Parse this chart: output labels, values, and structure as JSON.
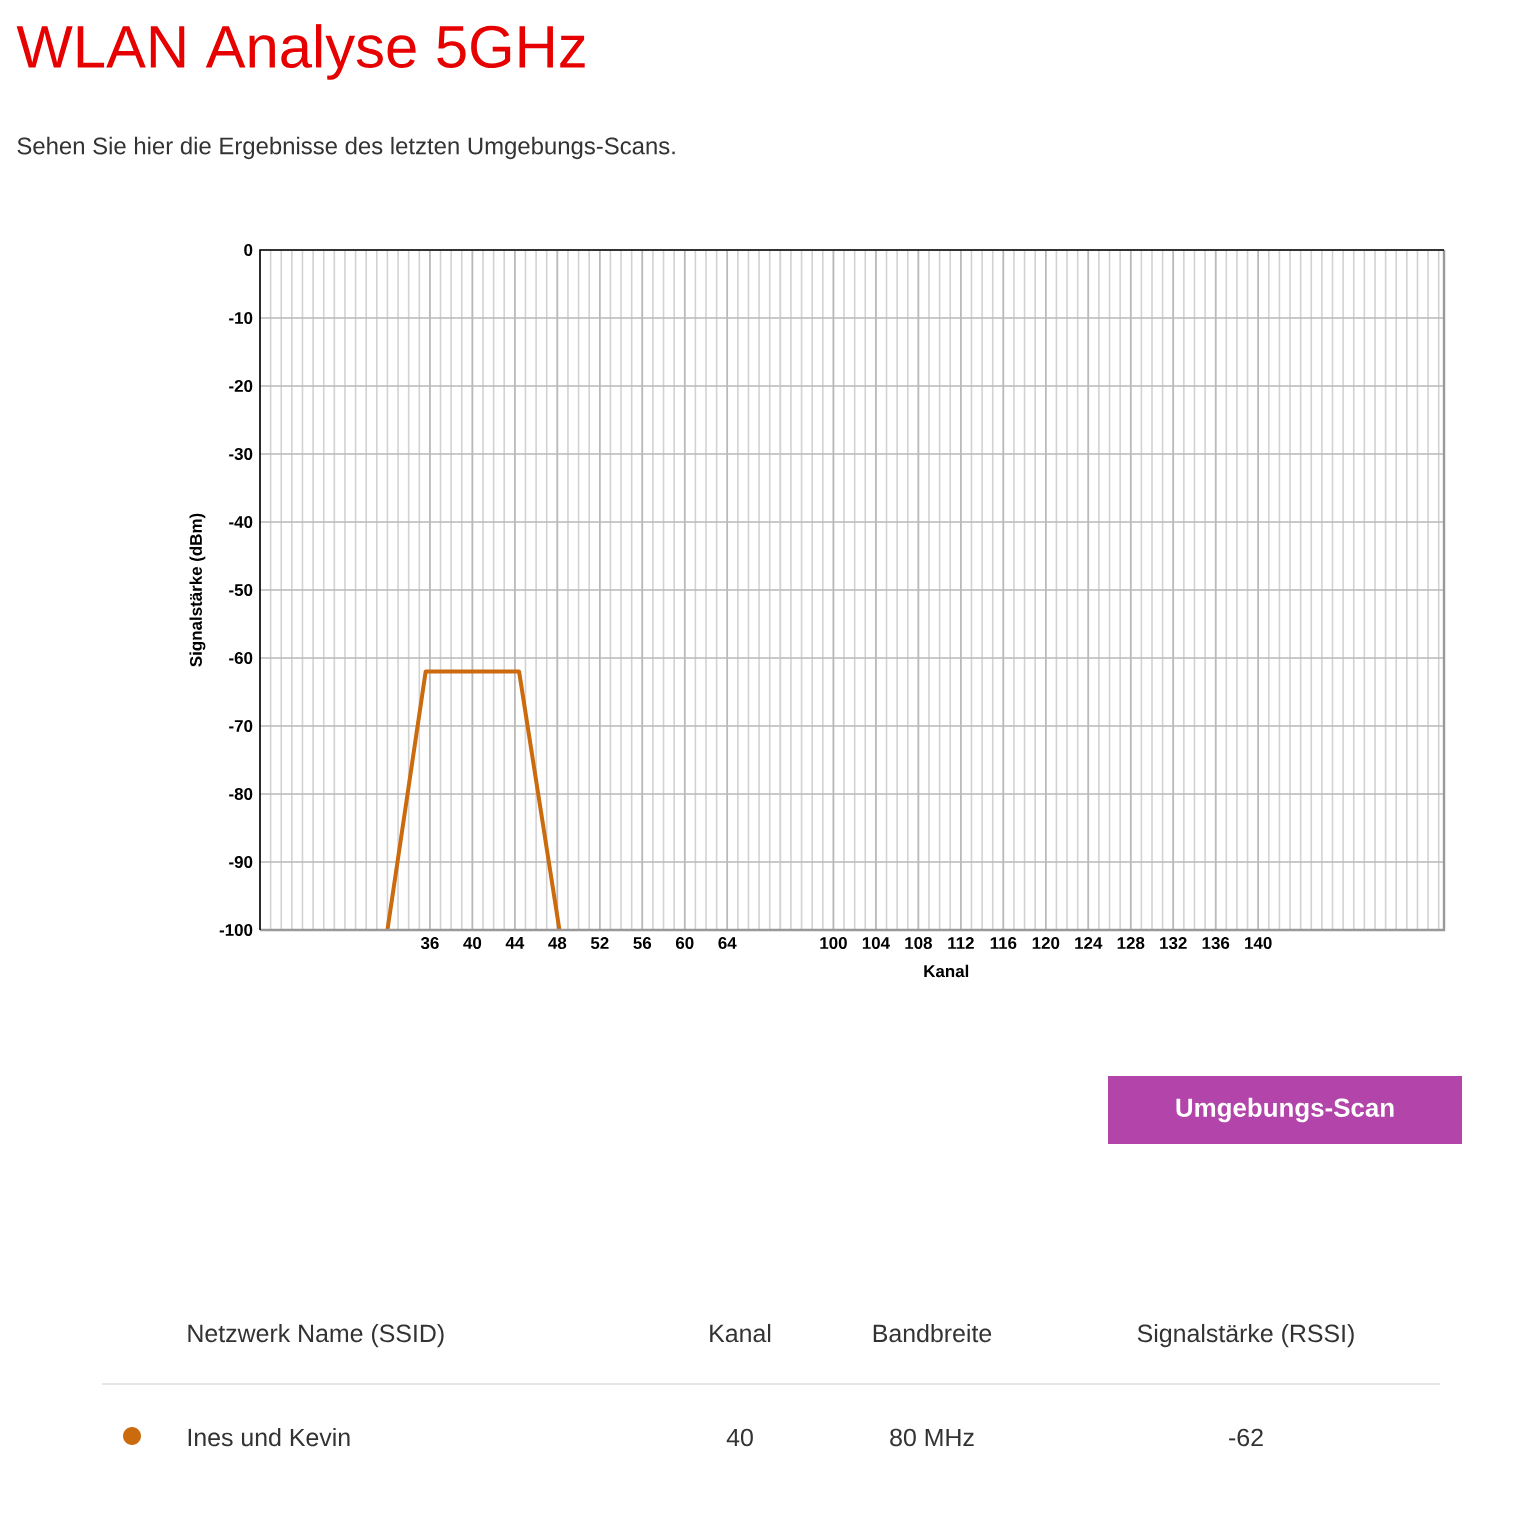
{
  "chart_data": [
    {
      "type": "line",
      "title": "WLAN Analyse 5GHz",
      "subtitle": "Sehen Sie hier die Ergebnisse des letzten Umgebungs-Scans.",
      "ylabel": "Signalstärke (dBm)",
      "series": [
        {
          "name": "Ines und Kevin",
          "color": "#cc6a0e",
          "x": [
            32,
            35.6,
            44.4,
            48.2
          ],
          "values": [
            -100,
            -62,
            -62,
            -100
          ]
        }
      ],
      "xlim": [
        20,
        69
      ],
      "xticks": [
        36,
        40,
        44,
        48,
        52,
        56,
        60,
        64
      ],
      "ylim": [
        -100,
        0
      ],
      "yticks": [
        0,
        -10,
        -20,
        -30,
        -40,
        -50,
        -60,
        -70,
        -80,
        -90,
        -100
      ],
      "grid": true,
      "legend": "bottom",
      "marker": "none",
      "line_style": "solid",
      "annotations": [
        "Umgebungs-Scan",
        "Netzwerk Name (SSID)",
        "Kanal",
        "Bandbreite",
        "Signalstärke (RSSI)",
        "40",
        "80 MHz",
        "-62"
      ]
    },
    {
      "type": "line",
      "xlabel": "Kanal",
      "xlim": [
        95,
        157.5
      ],
      "xticks": [
        100,
        104,
        108,
        112,
        116,
        120,
        124,
        128,
        132,
        136,
        140
      ],
      "ylim": [
        -100,
        0
      ],
      "yticks": [
        0,
        -10,
        -20,
        -30,
        -40,
        -50,
        -60,
        -70,
        -80,
        -90,
        -100
      ],
      "grid": true,
      "tick_labels": "x"
    }
  ]
}
